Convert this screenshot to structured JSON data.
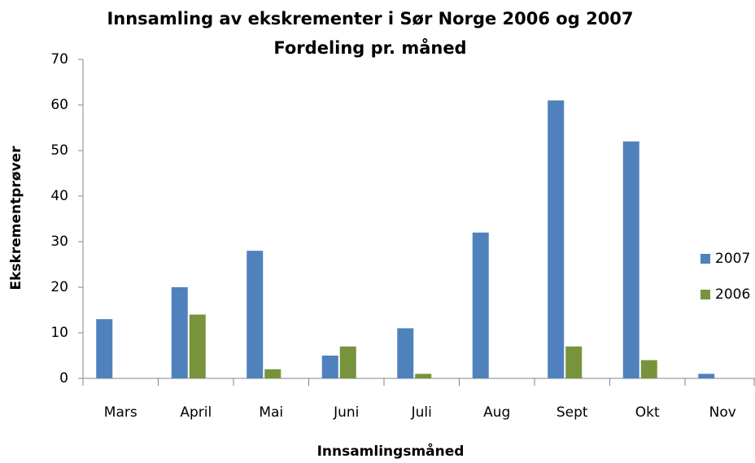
{
  "chart_data": {
    "type": "bar",
    "title": "Innsamling av ekskrementer i Sør Norge 2006 og 2007",
    "subtitle": "Fordeling pr. måned",
    "x_label": "Innsamlingsmåned",
    "y_label": "Ekskrementprøver",
    "categories": [
      "Mars",
      "April",
      "Mai",
      "Juni",
      "Juli",
      "Aug",
      "Sept",
      "Okt",
      "Nov"
    ],
    "series": [
      {
        "name": "2007",
        "color": "#4f81bd",
        "values": [
          13,
          20,
          28,
          5,
          11,
          32,
          61,
          52,
          1
        ]
      },
      {
        "name": "2006",
        "color": "#77933c",
        "values": [
          0,
          14,
          2,
          7,
          1,
          0,
          7,
          4,
          0
        ]
      }
    ],
    "ylim": [
      0,
      70
    ],
    "yticks": [
      0,
      10,
      20,
      30,
      40,
      50,
      60,
      70
    ],
    "grid": false,
    "legend": "right"
  }
}
